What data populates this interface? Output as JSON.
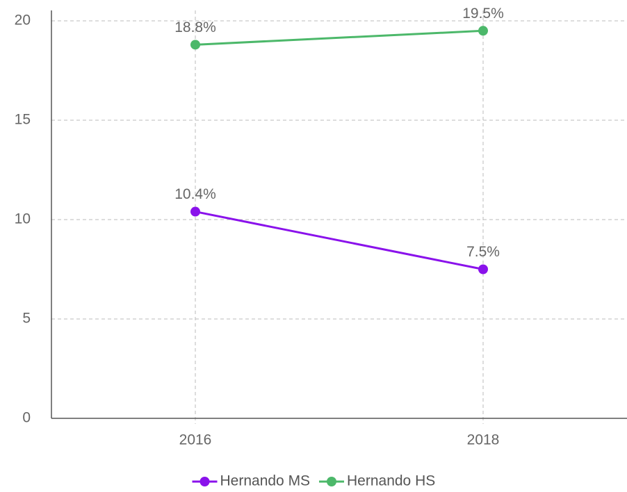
{
  "chart_data": {
    "type": "line",
    "categories": [
      "2016",
      "2018"
    ],
    "series": [
      {
        "name": "Hernando MS",
        "color": "#8a12eb",
        "values": [
          10.4,
          7.5
        ],
        "value_labels": [
          "10.4%",
          "7.5%"
        ]
      },
      {
        "name": "Hernando HS",
        "color": "#4cb86a",
        "values": [
          18.8,
          19.5
        ],
        "value_labels": [
          "18.8%",
          "19.5%"
        ]
      }
    ],
    "ylim": [
      0,
      20
    ],
    "yticks": [
      0,
      5,
      10,
      15,
      20
    ],
    "grid": true,
    "legend": "bottom"
  }
}
